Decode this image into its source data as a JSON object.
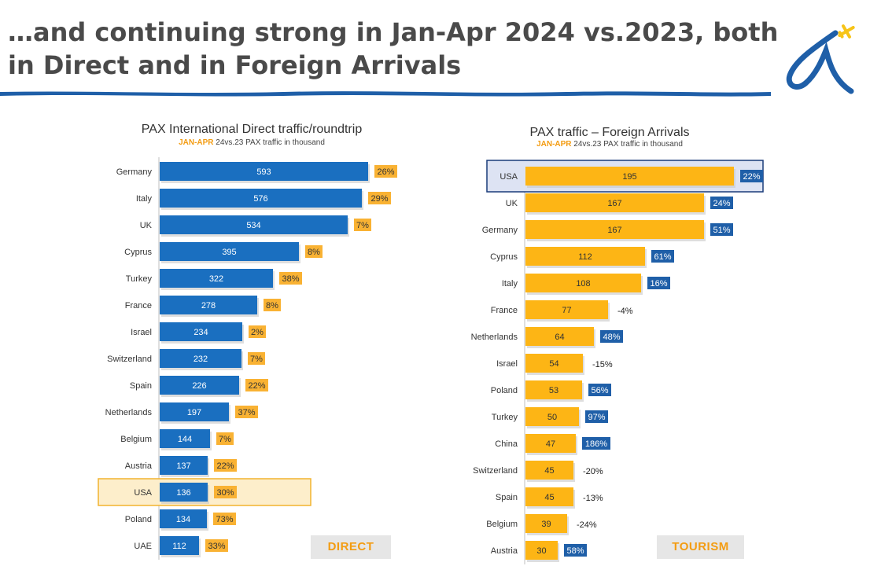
{
  "slide": {
    "title": "…and continuing strong in Jan-Apr 2024 vs.2023, both in Direct and in Foreign Arrivals"
  },
  "colors": {
    "direct_bar": "#1a6fc0",
    "tourism_bar": "#fdb515",
    "direct_badge": "#f9b233",
    "tourism_badge": "#1f5fa8",
    "highlight_direct_bg": "#fdeecb",
    "highlight_direct_border": "#f2b42f",
    "highlight_tourism_bg": "#dde3f3",
    "highlight_tourism_border": "#1a3c7a",
    "title_text": "#4a4a4a",
    "accent_orange": "#f39c12",
    "logo_blue": "#1f5fa8",
    "logo_plane": "#f7c417"
  },
  "left_chart": {
    "title": "PAX International Direct traffic/roundtrip",
    "subtitle_highlight": "JAN-APR",
    "subtitle_rest": " 24vs.23 PAX traffic in thousand",
    "badge": "DIRECT"
  },
  "right_chart": {
    "title": "PAX traffic – Foreign Arrivals",
    "subtitle_highlight": "JAN-APR",
    "subtitle_rest": " 24vs.23 PAX traffic in thousand",
    "badge": "TOURISM"
  },
  "chart_data": [
    {
      "type": "bar",
      "orientation": "horizontal",
      "title": "PAX International Direct traffic/roundtrip",
      "subtitle": "JAN-APR 24vs.23 PAX traffic in thousand",
      "categories": [
        "Germany",
        "Italy",
        "UK",
        "Cyprus",
        "Turkey",
        "France",
        "Israel",
        "Switzerland",
        "Spain",
        "Netherlands",
        "Belgium",
        "Austria",
        "USA",
        "Poland",
        "UAE"
      ],
      "values": [
        593,
        576,
        534,
        395,
        322,
        278,
        234,
        232,
        226,
        197,
        144,
        137,
        136,
        134,
        112
      ],
      "growth_labels": [
        "26%",
        "29%",
        "7%",
        "8%",
        "38%",
        "8%",
        "2%",
        "7%",
        "22%",
        "37%",
        "7%",
        "22%",
        "30%",
        "73%",
        "33%"
      ],
      "growth_badge": [
        true,
        true,
        true,
        true,
        true,
        true,
        true,
        true,
        true,
        true,
        true,
        true,
        true,
        true,
        true
      ],
      "highlight": "USA",
      "xlim": [
        0,
        640
      ],
      "grid": false,
      "legend": "none"
    },
    {
      "type": "bar",
      "orientation": "horizontal",
      "title": "PAX traffic – Foreign Arrivals",
      "subtitle": "JAN-APR 24vs.23 PAX traffic in thousand",
      "categories": [
        "USA",
        "UK",
        "Germany",
        "Cyprus",
        "Italy",
        "France",
        "Netherlands",
        "Israel",
        "Poland",
        "Turkey",
        "China",
        "Switzerland",
        "Spain",
        "Belgium",
        "Austria"
      ],
      "values": [
        195,
        167,
        167,
        112,
        108,
        77,
        64,
        54,
        53,
        50,
        47,
        45,
        45,
        39,
        30
      ],
      "growth_labels": [
        "22%",
        "24%",
        "51%",
        "61%",
        "16%",
        "-4%",
        "48%",
        "-15%",
        "56%",
        "97%",
        "186%",
        "-20%",
        "-13%",
        "-24%",
        "58%"
      ],
      "growth_badge": [
        true,
        true,
        true,
        true,
        true,
        false,
        true,
        false,
        true,
        true,
        true,
        false,
        false,
        false,
        true
      ],
      "highlight": "USA",
      "xlim": [
        0,
        210
      ],
      "grid": false,
      "legend": "none"
    }
  ]
}
